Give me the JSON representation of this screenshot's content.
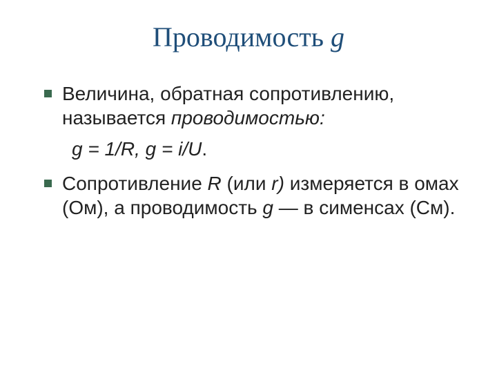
{
  "colors": {
    "title": "#1f4e79",
    "bullet_marker": "#3a6a4f",
    "body_text": "#222222",
    "background": "#ffffff"
  },
  "typography": {
    "title_fontsize_pt": 30,
    "body_fontsize_pt": 21,
    "title_family": "Times New Roman",
    "body_family": "Arial"
  },
  "title": {
    "plain": "Проводимость ",
    "symbol": "g"
  },
  "bullets": {
    "b1": {
      "t1": "Величина, обратная сопротивлению, называется ",
      "t2_italic": "проводимостью:"
    },
    "formula": "g = 1/R, g = i/U",
    "formula_tail": ".",
    "b2": {
      "t1": "Сопротивление ",
      "t2_italic": "R",
      "t3": " (или ",
      "t4_italic": "r)",
      "t5": " измеряется в омах (Ом), а проводимость ",
      "t6_italic": "g",
      "t7": " — в сименсах (См)."
    }
  }
}
